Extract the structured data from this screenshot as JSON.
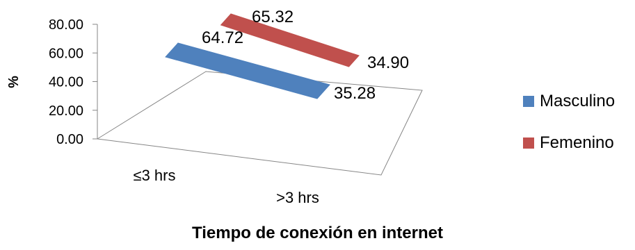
{
  "chart_data": {
    "type": "line",
    "style": "3d-ribbon",
    "categories": [
      "≤3 hrs",
      ">3 hrs"
    ],
    "series": [
      {
        "name": "Masculino",
        "values": [
          64.72,
          35.28
        ],
        "labels": [
          "64.72",
          "35.28"
        ],
        "color": "#4f81bd"
      },
      {
        "name": "Femenino",
        "values": [
          65.32,
          34.9
        ],
        "labels": [
          "65.32",
          "34.90"
        ],
        "color": "#c0504d"
      }
    ],
    "ylabel": "%",
    "xlabel": "Tiempo de conexión en internet",
    "ylim": [
      0,
      80
    ],
    "yticks": [
      "0.00",
      "20.00",
      "40.00",
      "60.00",
      "80.00"
    ],
    "grid": false,
    "legend_position": "right"
  }
}
